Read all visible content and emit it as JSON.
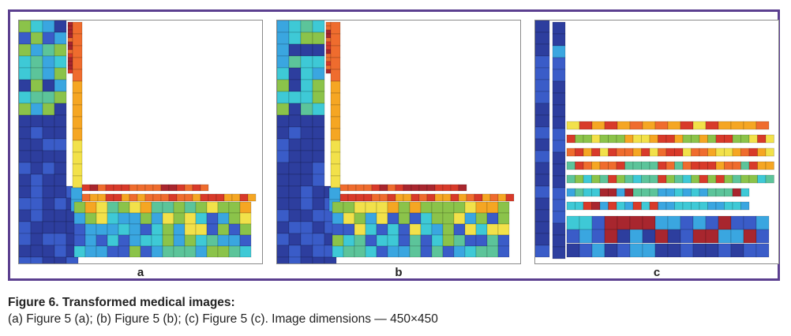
{
  "figure": {
    "panels": [
      {
        "label": "a",
        "variant": "a"
      },
      {
        "label": "b",
        "variant": "b"
      },
      {
        "label": "c",
        "variant": "c"
      }
    ],
    "caption_title": "Figure 6. Transformed medical images:",
    "caption_body": "(a) Figure 5 (a); (b) Figure 5 (b); (c) Figure 5 (c). Image dimensions — 450×450"
  },
  "colors": {
    "frame_border": "#5b3f8f",
    "palette": [
      "#2d3e9e",
      "#3a5cc8",
      "#3aa6e0",
      "#3ec9d6",
      "#5cc49a",
      "#8bc34a",
      "#f2e14a",
      "#f5a623",
      "#ef6c2e",
      "#d83a2a",
      "#a8262e"
    ]
  }
}
